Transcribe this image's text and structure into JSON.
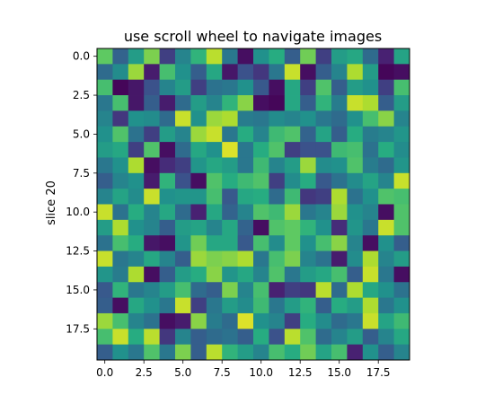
{
  "chart_data": {
    "type": "heatmap",
    "title": "use scroll wheel to navigate images",
    "xlabel": "",
    "ylabel": "slice 20",
    "xlim": [
      -0.5,
      19.5
    ],
    "ylim": [
      19.5,
      -0.5
    ],
    "y_inverted": true,
    "colormap": "viridis",
    "value_range": [
      0,
      1
    ],
    "grid": false,
    "x_ticks": [
      0.0,
      2.5,
      5.0,
      7.5,
      10.0,
      12.5,
      15.0,
      17.5
    ],
    "x_tick_labels": [
      "0.0",
      "2.5",
      "5.0",
      "7.5",
      "10.0",
      "12.5",
      "15.0",
      "17.5"
    ],
    "y_ticks": [
      0.0,
      2.5,
      5.0,
      7.5,
      10.0,
      12.5,
      15.0,
      17.5
    ],
    "y_tick_labels": [
      "0.0",
      "2.5",
      "5.0",
      "7.5",
      "10.0",
      "12.5",
      "15.0",
      "17.5"
    ],
    "rows": 20,
    "cols": 20,
    "values": [
      [
        0.75,
        0.32,
        0.55,
        0.8,
        0.2,
        0.45,
        0.65,
        0.9,
        0.4,
        0.05,
        0.5,
        0.62,
        0.3,
        0.78,
        0.2,
        0.55,
        0.6,
        0.35,
        0.12,
        0.58
      ],
      [
        0.35,
        0.48,
        0.85,
        0.1,
        0.7,
        0.5,
        0.3,
        0.6,
        0.08,
        0.25,
        0.18,
        0.4,
        0.92,
        0.05,
        0.3,
        0.45,
        0.88,
        0.55,
        0.02,
        0.05
      ],
      [
        0.7,
        0.02,
        0.08,
        0.25,
        0.45,
        0.55,
        0.2,
        0.38,
        0.4,
        0.5,
        0.28,
        0.05,
        0.6,
        0.2,
        0.72,
        0.3,
        0.55,
        0.5,
        0.2,
        0.7
      ],
      [
        0.4,
        0.7,
        0.08,
        0.3,
        0.1,
        0.35,
        0.55,
        0.45,
        0.65,
        0.82,
        0.05,
        0.02,
        0.6,
        0.3,
        0.65,
        0.42,
        0.92,
        0.88,
        0.3,
        0.55
      ],
      [
        0.45,
        0.18,
        0.5,
        0.48,
        0.35,
        0.92,
        0.5,
        0.85,
        0.88,
        0.42,
        0.4,
        0.48,
        0.45,
        0.5,
        0.4,
        0.35,
        0.5,
        0.7,
        0.82,
        0.45
      ],
      [
        0.5,
        0.72,
        0.38,
        0.2,
        0.55,
        0.45,
        0.85,
        0.92,
        0.4,
        0.62,
        0.45,
        0.68,
        0.72,
        0.32,
        0.58,
        0.3,
        0.62,
        0.42,
        0.45,
        0.52
      ],
      [
        0.55,
        0.6,
        0.2,
        0.72,
        0.05,
        0.35,
        0.6,
        0.5,
        0.95,
        0.4,
        0.62,
        0.72,
        0.2,
        0.25,
        0.25,
        0.68,
        0.7,
        0.38,
        0.62,
        0.48
      ],
      [
        0.4,
        0.5,
        0.88,
        0.05,
        0.15,
        0.2,
        0.52,
        0.6,
        0.55,
        0.4,
        0.68,
        0.45,
        0.55,
        0.85,
        0.48,
        0.5,
        0.72,
        0.42,
        0.35,
        0.52
      ],
      [
        0.3,
        0.45,
        0.5,
        0.1,
        0.65,
        0.25,
        0.05,
        0.72,
        0.62,
        0.68,
        0.72,
        0.2,
        0.48,
        0.62,
        0.28,
        0.38,
        0.48,
        0.58,
        0.45,
        0.92
      ],
      [
        0.45,
        0.58,
        0.48,
        0.92,
        0.5,
        0.52,
        0.52,
        0.7,
        0.28,
        0.6,
        0.62,
        0.35,
        0.68,
        0.18,
        0.2,
        0.88,
        0.38,
        0.5,
        0.72,
        0.7
      ],
      [
        0.92,
        0.38,
        0.62,
        0.45,
        0.6,
        0.35,
        0.12,
        0.6,
        0.32,
        0.45,
        0.72,
        0.68,
        0.85,
        0.4,
        0.45,
        0.85,
        0.5,
        0.45,
        0.05,
        0.72
      ],
      [
        0.55,
        0.88,
        0.5,
        0.45,
        0.3,
        0.55,
        0.58,
        0.45,
        0.6,
        0.32,
        0.05,
        0.72,
        0.75,
        0.65,
        0.5,
        0.15,
        0.52,
        0.4,
        0.92,
        0.72
      ],
      [
        0.38,
        0.7,
        0.62,
        0.08,
        0.05,
        0.52,
        0.78,
        0.6,
        0.6,
        0.28,
        0.7,
        0.48,
        0.75,
        0.5,
        0.7,
        0.82,
        0.45,
        0.05,
        0.5,
        0.3
      ],
      [
        0.92,
        0.4,
        0.45,
        0.6,
        0.45,
        0.3,
        0.85,
        0.8,
        0.82,
        0.88,
        0.4,
        0.7,
        0.8,
        0.45,
        0.38,
        0.1,
        0.48,
        0.88,
        0.45,
        0.55
      ],
      [
        0.52,
        0.42,
        0.88,
        0.05,
        0.3,
        0.55,
        0.62,
        0.82,
        0.52,
        0.6,
        0.45,
        0.72,
        0.4,
        0.55,
        0.6,
        0.7,
        0.3,
        0.92,
        0.4,
        0.05
      ],
      [
        0.28,
        0.65,
        0.4,
        0.45,
        0.55,
        0.7,
        0.35,
        0.3,
        0.8,
        0.45,
        0.7,
        0.12,
        0.2,
        0.18,
        0.9,
        0.35,
        0.88,
        0.6,
        0.5,
        0.38
      ],
      [
        0.3,
        0.05,
        0.6,
        0.5,
        0.4,
        0.92,
        0.2,
        0.4,
        0.55,
        0.48,
        0.68,
        0.4,
        0.55,
        0.65,
        0.3,
        0.62,
        0.55,
        0.88,
        0.4,
        0.5
      ],
      [
        0.85,
        0.7,
        0.45,
        0.38,
        0.05,
        0.1,
        0.82,
        0.42,
        0.35,
        0.95,
        0.5,
        0.45,
        0.2,
        0.62,
        0.48,
        0.35,
        0.4,
        0.92,
        0.58,
        0.68
      ],
      [
        0.7,
        0.92,
        0.62,
        0.9,
        0.18,
        0.45,
        0.3,
        0.35,
        0.38,
        0.3,
        0.62,
        0.25,
        0.9,
        0.72,
        0.35,
        0.45,
        0.55,
        0.3,
        0.45,
        0.6
      ],
      [
        0.3,
        0.5,
        0.4,
        0.72,
        0.4,
        0.8,
        0.3,
        0.9,
        0.65,
        0.55,
        0.45,
        0.7,
        0.62,
        0.78,
        0.58,
        0.7,
        0.12,
        0.5,
        0.3,
        0.45
      ]
    ]
  }
}
